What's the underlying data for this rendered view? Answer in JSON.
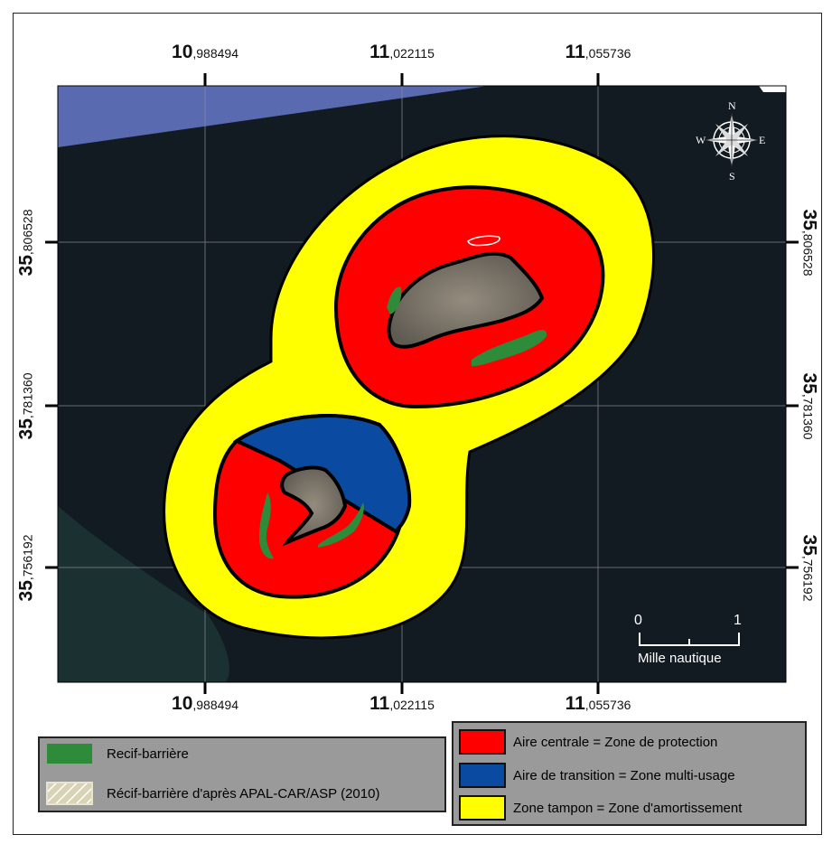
{
  "map": {
    "coordinates": {
      "x_labels": [
        {
          "big": "10",
          "small": ",988494"
        },
        {
          "big": "11",
          "small": ",022115"
        },
        {
          "big": "11",
          "small": ",055736"
        }
      ],
      "y_labels": [
        {
          "big": "35",
          "small": ",806528"
        },
        {
          "big": "35",
          "small": ",781360"
        },
        {
          "big": "35",
          "small": ",756192"
        }
      ]
    },
    "compass": {
      "north": "N",
      "south": "S",
      "east": "E",
      "west": "W"
    },
    "scale_bar": {
      "start": "0",
      "end": "1",
      "unit": "Mille nautique"
    },
    "colors": {
      "sea": "#121a22",
      "land": "#7d776c",
      "core": "#fe0000",
      "transition": "#0a4aa0",
      "buffer": "#ffff00",
      "reef": "#2e8b3a",
      "outline": "#000000"
    }
  },
  "legend_left": {
    "items": [
      {
        "label": "Recif-barrière",
        "swatch": "#2e8b3a"
      },
      {
        "label": "Récif-barrière d'après APAL-CAR/ASP (2010)",
        "swatch": "hatched"
      }
    ]
  },
  "legend_right": {
    "items": [
      {
        "label": "Aire centrale = Zone de protection",
        "swatch": "#fe0000"
      },
      {
        "label": "Aire de transition = Zone multi-usage",
        "swatch": "#0a4aa0"
      },
      {
        "label": "Zone tampon = Zone d'amortissement",
        "swatch": "#ffff00"
      }
    ]
  }
}
